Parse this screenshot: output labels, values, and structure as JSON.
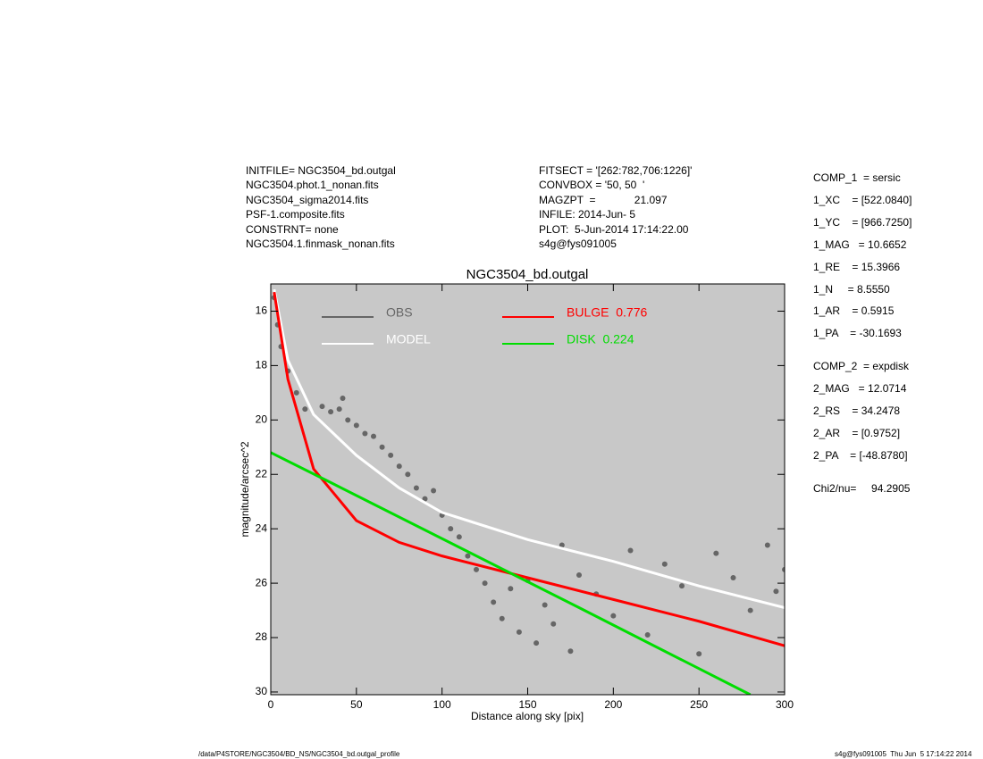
{
  "header": {
    "left": [
      "INITFILE= NGC3504_bd.outgal",
      "NGC3504.phot.1_nonan.fits",
      "NGC3504_sigma2014.fits",
      "PSF-1.composite.fits",
      "CONSTRNT= none",
      "NGC3504.1.finmask_nonan.fits"
    ],
    "center": [
      "FITSECT = '[262:782,706:1226]'",
      "CONVBOX = '50, 50  '",
      "MAGZPT  =             21.097",
      "INFILE: 2014-Jun- 5",
      "PLOT:  5-Jun-2014 17:14:22.00",
      "s4g@fys091005"
    ]
  },
  "parameters": [
    "COMP_1  = sersic",
    "1_XC    = [522.0840]",
    "1_YC    = [966.7250]",
    "1_MAG   = 10.6652",
    "1_RE    = 15.3966",
    "1_N     = 8.5550",
    "1_AR    = 0.5915",
    "1_PA    = -30.1693",
    "COMP_2  = expdisk",
    "2_MAG   = 12.0714",
    "2_RS    = 34.2478",
    "2_AR    = [0.9752]",
    "2_PA    = [-48.8780]",
    "Chi2/nu=     94.2905"
  ],
  "footer": {
    "left": "/data/P4STORE/NGC3504/BD_NS/NGC3504_bd.outgal_profile",
    "right": "s4g@fys091005  Thu Jun  5 17:14:22 2014"
  },
  "chart_data": {
    "type": "line",
    "title": "NGC3504_bd.outgal",
    "x_label": "Distance along sky [pix]",
    "y_label": "magnitude/arcsec^2",
    "xlim": [
      0,
      300
    ],
    "xticks": [
      0,
      50,
      100,
      150,
      200,
      250,
      300
    ],
    "ylim": [
      30.1,
      15
    ],
    "yticks": [
      16,
      18,
      20,
      22,
      24,
      26,
      28,
      30
    ],
    "series": [
      {
        "name": "OBS",
        "type": "scatter",
        "color": "#666666",
        "x": [
          2,
          4,
          6,
          10,
          15,
          20,
          30,
          35,
          40,
          42,
          45,
          50,
          55,
          60,
          65,
          70,
          75,
          80,
          85,
          90,
          95,
          100,
          105,
          110,
          115,
          120,
          125,
          130,
          135,
          140,
          145,
          150,
          155,
          160,
          165,
          170,
          175,
          180,
          190,
          200,
          210,
          220,
          230,
          240,
          250,
          260,
          270,
          280,
          290,
          295,
          300
        ],
        "values": [
          15.5,
          16.5,
          17.3,
          18.2,
          19.0,
          19.6,
          19.5,
          19.7,
          19.6,
          19.2,
          20.0,
          20.2,
          20.5,
          20.6,
          21.0,
          21.3,
          21.7,
          22.0,
          22.5,
          22.9,
          22.6,
          23.5,
          24.0,
          24.3,
          25.0,
          25.5,
          26.0,
          26.7,
          27.3,
          26.2,
          27.8,
          25.9,
          28.2,
          26.8,
          27.5,
          24.6,
          28.5,
          25.7,
          26.4,
          27.2,
          24.8,
          27.9,
          25.3,
          26.1,
          28.6,
          24.9,
          25.8,
          27.0,
          24.6,
          26.3,
          25.5
        ]
      },
      {
        "name": "MODEL",
        "type": "line",
        "color": "#ffffff",
        "x": [
          2,
          10,
          25,
          50,
          75,
          100,
          150,
          200,
          250,
          300
        ],
        "values": [
          15.2,
          17.8,
          19.8,
          21.3,
          22.5,
          23.4,
          24.4,
          25.2,
          26.1,
          26.9
        ]
      },
      {
        "name": "BULGE  0.776",
        "type": "line",
        "color": "#ff0000",
        "x": [
          2,
          10,
          25,
          50,
          75,
          100,
          150,
          200,
          250,
          300
        ],
        "values": [
          15.3,
          18.5,
          21.8,
          23.7,
          24.5,
          25.0,
          25.8,
          26.6,
          27.4,
          28.3
        ]
      },
      {
        "name": "DISK  0.224",
        "type": "line",
        "color": "#00dd00",
        "x": [
          0,
          35,
          180,
          280
        ],
        "values": [
          21.2,
          22.3,
          26.9,
          30.1
        ]
      }
    ]
  }
}
